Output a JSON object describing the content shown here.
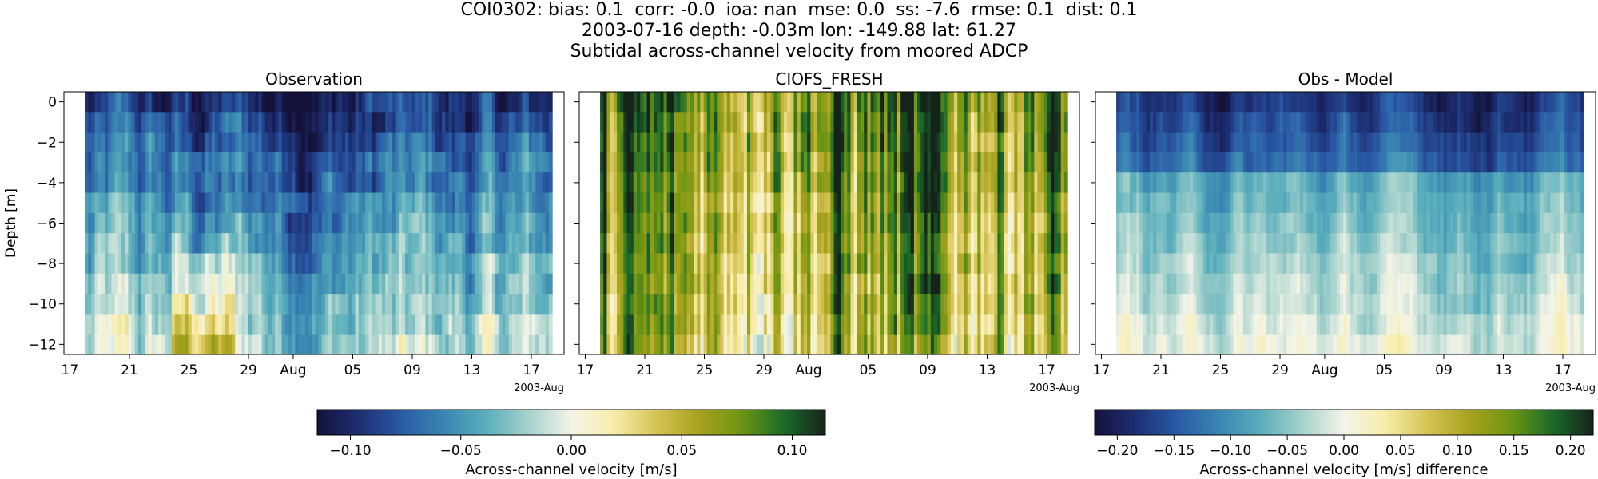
{
  "figure": {
    "title_lines": [
      "COI0302: bias: 0.1  corr: -0.0  ioa: nan  mse: 0.0  ss: -7.6  rmse: 0.1  dist: 0.1",
      "2003-07-16 depth: -0.03m lon: -149.88 lat: 61.27",
      "Subtidal across-channel velocity from moored ADCP"
    ]
  },
  "colors": {
    "colormap_stops": [
      "#14123a",
      "#1d2f73",
      "#2a5aa6",
      "#3a86b2",
      "#5aaebc",
      "#a6d2cc",
      "#f3f4e8",
      "#f8edaa",
      "#d6c456",
      "#a8a21f",
      "#6f9612",
      "#1b6c2a",
      "#15231a"
    ]
  },
  "chart_data": [
    {
      "type": "heatmap",
      "title": "Observation",
      "ylabel": "Depth [m]",
      "xlabel": "",
      "x_range": [
        "2003-07-17",
        "2003-08-19"
      ],
      "ylim": [
        -12.5,
        0.5
      ],
      "x_ticks": [
        "17",
        "21",
        "25",
        "29",
        "Aug",
        "05",
        "09",
        "13",
        "17"
      ],
      "x_offset_label": "2003-Aug",
      "y_ticks": [
        "0",
        "−2",
        "−4",
        "−6",
        "−8",
        "−10",
        "−12"
      ],
      "depth_bins": [
        0,
        -1,
        -2,
        -3,
        -4,
        -5,
        -6,
        -7,
        -8,
        -9,
        -10,
        -11,
        -12
      ],
      "color_range": [
        -0.115,
        0.115
      ],
      "description_values": {
        "surface_value": -0.1,
        "bottom_value": -0.02
      }
    },
    {
      "type": "heatmap",
      "title": "CIOFS_FRESH",
      "x_range": [
        "2003-07-17",
        "2003-08-19"
      ],
      "ylim": [
        -12.5,
        0.5
      ],
      "x_ticks": [
        "17",
        "21",
        "25",
        "29",
        "Aug",
        "05",
        "09",
        "13",
        "17"
      ],
      "x_offset_label": "2003-Aug",
      "depth_bins": [
        0,
        -1,
        -2,
        -3,
        -4,
        -5,
        -6,
        -7,
        -8,
        -9,
        -10,
        -11,
        -12
      ],
      "color_range": [
        -0.115,
        0.115
      ],
      "description_values": {
        "surface_value": 0.08,
        "bottom_value": 0.05
      }
    },
    {
      "type": "heatmap",
      "title": "Obs - Model",
      "x_range": [
        "2003-07-17",
        "2003-08-19"
      ],
      "ylim": [
        -12.5,
        0.5
      ],
      "x_ticks": [
        "17",
        "21",
        "25",
        "29",
        "Aug",
        "05",
        "09",
        "13",
        "17"
      ],
      "x_offset_label": "2003-Aug",
      "depth_bins": [
        0,
        -1,
        -2,
        -3,
        -4,
        -5,
        -6,
        -7,
        -8,
        -9,
        -10,
        -11,
        -12
      ],
      "color_range": [
        -0.22,
        0.22
      ],
      "description_values": {
        "surface_value": -0.18,
        "bottom_value": -0.06
      }
    }
  ],
  "colorbars": [
    {
      "label": "Across-channel velocity [m/s]",
      "range": [
        -0.115,
        0.115
      ],
      "ticks": [
        -0.1,
        -0.05,
        0.0,
        0.05,
        0.1
      ],
      "tick_labels": [
        "−0.10",
        "−0.05",
        "0.00",
        "0.05",
        "0.10"
      ]
    },
    {
      "label": "Across-channel velocity [m/s] difference",
      "range": [
        -0.22,
        0.22
      ],
      "ticks": [
        -0.2,
        -0.15,
        -0.1,
        -0.05,
        0.0,
        0.05,
        0.1,
        0.15,
        0.2
      ],
      "tick_labels": [
        "−0.20",
        "−0.15",
        "−0.10",
        "−0.05",
        "0.00",
        "0.05",
        "0.10",
        "0.15",
        "0.20"
      ]
    }
  ]
}
